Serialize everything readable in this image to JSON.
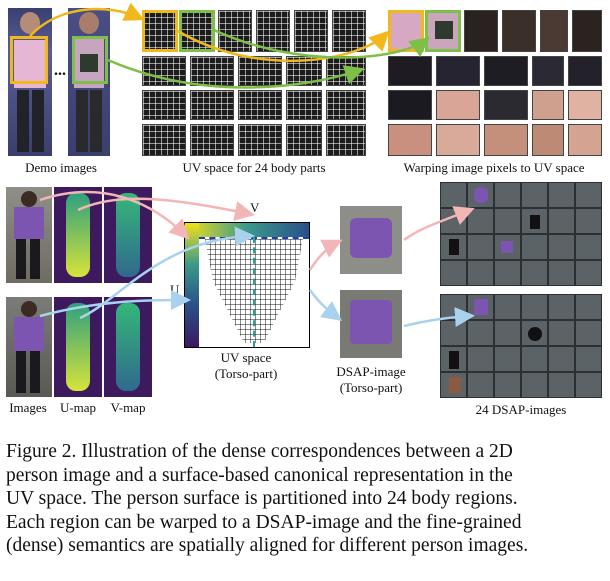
{
  "figure": {
    "labels": {
      "demo_images": "Demo images",
      "uv_space_24": "UV space for 24 body parts",
      "warping": "Warping image pixels to UV space",
      "images": "Images",
      "u_map": "U-map",
      "v_map": "V-map",
      "uv_space": "UV space",
      "torso_part": "(Torso-part)",
      "dsap_image": "DSAP-image",
      "dsap_torso": "(Torso-part)",
      "dsap_24": "24 DSAP-images",
      "axis_v": "V",
      "axis_u": "U",
      "ellipsis": "..."
    },
    "colors": {
      "yellow": "#f0b81a",
      "green": "#7dbf47",
      "pink_arrow": "#f2b6b6",
      "blue_arrow": "#a9d2ee",
      "purple_clothing": "#7b55b0",
      "dsap_bg": "#5b6367"
    }
  },
  "caption": {
    "line1": "Figure 2. Illustration of the dense correspondences between a 2D",
    "line2": "person image and a surface-based canonical representation in the",
    "line3": "UV space. The person surface is partitioned into 24 body regions.",
    "line4": "Each region can be warped to a DSAP-image and the fine-grained",
    "line5": "(dense) semantics are spatially aligned for different person images."
  }
}
